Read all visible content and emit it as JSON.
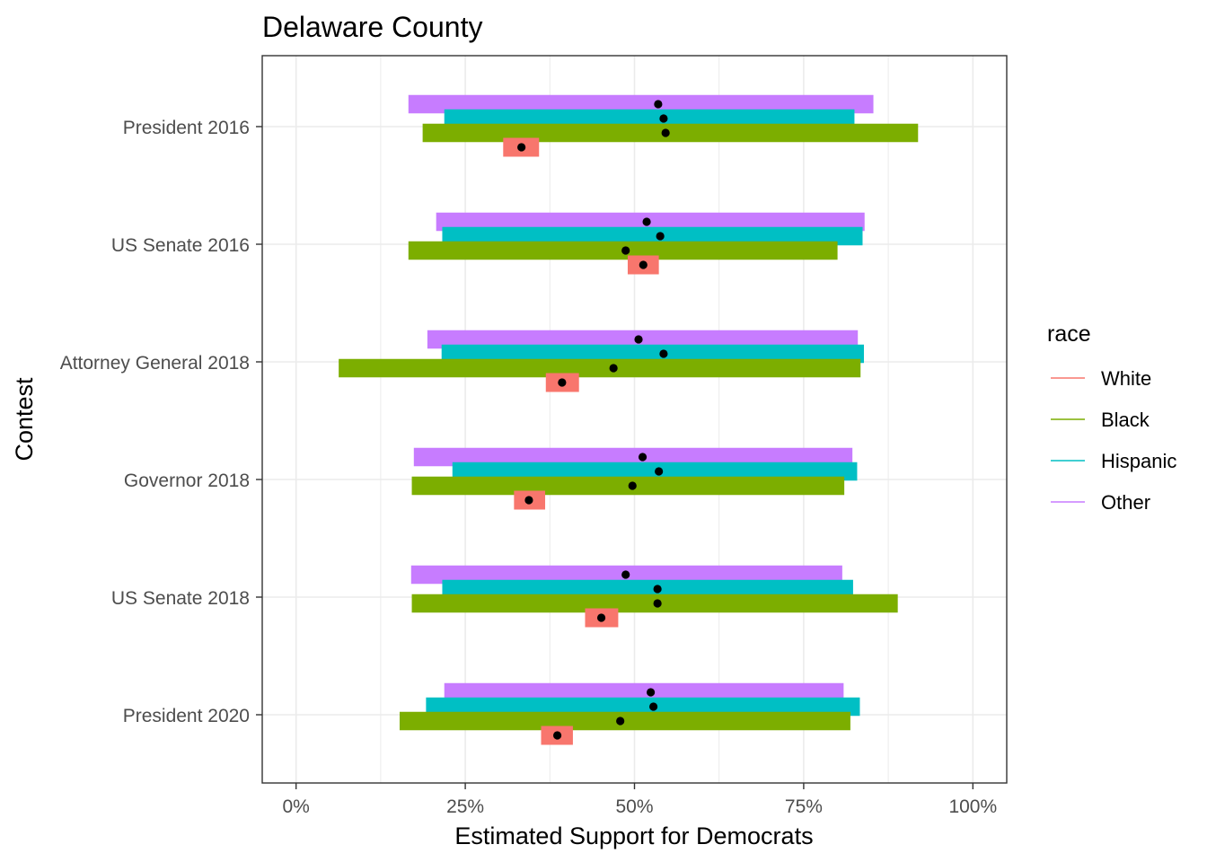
{
  "chart_data": {
    "type": "interval",
    "title": "Delaware County",
    "xlabel": "Estimated Support for Democrats",
    "ylabel": "Contest",
    "xlim": [
      -0.05,
      1.05
    ],
    "x_ticks": [
      0,
      0.25,
      0.5,
      0.75,
      1.0
    ],
    "x_tick_labels": [
      "0%",
      "25%",
      "50%",
      "75%",
      "100%"
    ],
    "grid": true,
    "legend_position": "right",
    "legend_title": "race",
    "categories": [
      "President 2016",
      "US Senate 2016",
      "Attorney General 2018",
      "Governor 2018",
      "US Senate 2018",
      "President 2020"
    ],
    "series": [
      {
        "name": "White",
        "color": "#F8766D",
        "estimates": [
          0.333,
          0.513,
          0.393,
          0.344,
          0.451,
          0.386
        ],
        "lower": [
          0.306,
          0.49,
          0.369,
          0.322,
          0.427,
          0.362
        ],
        "upper": [
          0.359,
          0.536,
          0.418,
          0.368,
          0.476,
          0.409
        ]
      },
      {
        "name": "Black",
        "color": "#7CAE00",
        "estimates": [
          0.546,
          0.487,
          0.469,
          0.497,
          0.534,
          0.479
        ],
        "lower": [
          0.187,
          0.166,
          0.063,
          0.171,
          0.171,
          0.153
        ],
        "upper": [
          0.919,
          0.8,
          0.834,
          0.81,
          0.889,
          0.819
        ]
      },
      {
        "name": "Hispanic",
        "color": "#00BFC4",
        "estimates": [
          0.543,
          0.538,
          0.543,
          0.536,
          0.534,
          0.528
        ],
        "lower": [
          0.219,
          0.216,
          0.215,
          0.231,
          0.216,
          0.192
        ],
        "upper": [
          0.825,
          0.837,
          0.839,
          0.829,
          0.823,
          0.833
        ]
      },
      {
        "name": "Other",
        "color": "#C77CFF",
        "estimates": [
          0.535,
          0.518,
          0.506,
          0.512,
          0.487,
          0.524
        ],
        "lower": [
          0.166,
          0.207,
          0.194,
          0.174,
          0.17,
          0.219
        ],
        "upper": [
          0.853,
          0.84,
          0.83,
          0.822,
          0.807,
          0.809
        ]
      }
    ]
  }
}
